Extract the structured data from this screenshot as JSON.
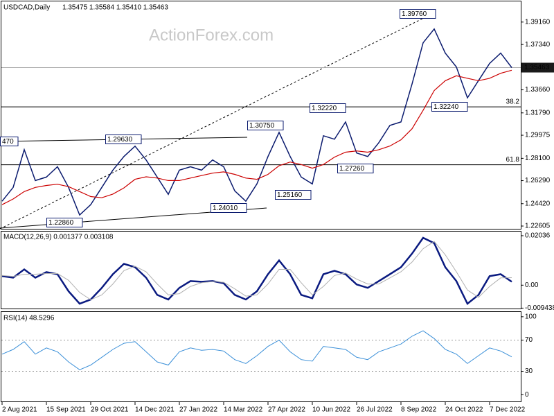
{
  "watermark": "ActionForex.com",
  "chart_data": [
    {
      "type": "line",
      "title": "USDCAD,Daily",
      "subtitle": "1.35475 1.35584 1.35410 1.35463",
      "categories": [
        "2 Aug 2021",
        null,
        null,
        null,
        "15 Sep 2021",
        null,
        null,
        null,
        "29 Oct 2021",
        null,
        null,
        null,
        "14 Dec 2021",
        null,
        null,
        null,
        "27 Jan 2022",
        null,
        null,
        null,
        "14 Mar 2022",
        null,
        null,
        null,
        "27 Apr 2022",
        null,
        null,
        null,
        "10 Jun 2022",
        null,
        null,
        null,
        "26 Jul 2022",
        null,
        null,
        null,
        "8 Sep 2022",
        null,
        null,
        null,
        "24 Oct 2022",
        null,
        null,
        null,
        "7 Dec 2022",
        null,
        null
      ],
      "series": [
        {
          "name": "USDCAD",
          "color": "#0a1a6e",
          "width": 1.5,
          "values": [
            1.2462,
            1.2574,
            1.2881,
            1.263,
            1.2658,
            1.2742,
            1.2574,
            1.235,
            1.2434,
            1.2574,
            1.2714,
            1.2825,
            1.2909,
            1.2797,
            1.2658,
            1.2518,
            1.2714,
            1.2742,
            1.2714,
            1.2797,
            1.2742,
            1.2546,
            1.2462,
            1.2602,
            1.2825,
            1.3021,
            1.2825,
            1.2658,
            1.2602,
            1.2993,
            1.2965,
            1.3105,
            1.2853,
            1.2825,
            1.2937,
            1.3077,
            1.3105,
            1.3413,
            1.3748,
            1.386,
            1.3664,
            1.3552,
            1.3301,
            1.3441,
            1.358,
            1.3664,
            1.35463
          ]
        },
        {
          "name": "MA",
          "color": "#cc0000",
          "width": 1.2,
          "values": [
            1.2434,
            1.248,
            1.254,
            1.2574,
            1.259,
            1.26,
            1.258,
            1.254,
            1.25,
            1.249,
            1.252,
            1.257,
            1.264,
            1.266,
            1.265,
            1.263,
            1.263,
            1.265,
            1.267,
            1.269,
            1.27,
            1.268,
            1.265,
            1.264,
            1.268,
            1.275,
            1.278,
            1.276,
            1.273,
            1.276,
            1.282,
            1.286,
            1.287,
            1.286,
            1.288,
            1.291,
            1.296,
            1.305,
            1.32,
            1.336,
            1.344,
            1.348,
            1.346,
            1.344,
            1.346,
            1.35,
            1.3525
          ]
        }
      ],
      "ylim": [
        1.22381,
        1.40838
      ],
      "yticks": [
        {
          "value": 1.3916,
          "label": "1.39160"
        },
        {
          "value": 1.3734,
          "label": "1.37340"
        },
        {
          "value": 1.3366,
          "label": "1.33660"
        },
        {
          "value": 1.3179,
          "label": "1.31790"
        },
        1.29975,
        {
          "value": 1.281,
          "label": "1.28100"
        },
        {
          "value": 1.2629,
          "label": "1.26290"
        },
        {
          "value": 1.2442,
          "label": "1.24420"
        },
        1.22605
      ],
      "last_price": {
        "value": 1.35463,
        "label": "1.35463"
      },
      "fib_levels": [
        {
          "value": 1.3228,
          "label": "38.2"
        },
        {
          "value": 1.2758,
          "label": "61.8"
        }
      ],
      "annotations": [
        "1.39760",
        "1.32240",
        "1.32220",
        "1.30750",
        "1.29630",
        "1.27260",
        "1.25160",
        "1.24010",
        "1.22860",
        "470"
      ]
    },
    {
      "type": "line",
      "title": "MACD(12,26,9) 0.001377 0.003108",
      "series": [
        {
          "name": "MACD",
          "color": "#0a1a80",
          "width": 2.5,
          "values": [
            0.0037,
            0.0031,
            0.0065,
            0.0031,
            0.0054,
            0.0045,
            -0.0025,
            -0.0076,
            -0.0059,
            -0.0011,
            0.0045,
            0.0088,
            0.0074,
            0.0031,
            -0.004,
            -0.0059,
            -0.0011,
            0.0017,
            0.0014,
            0.0017,
            0.0008,
            -0.004,
            -0.0059,
            -0.0025,
            0.0045,
            0.0102,
            0.0045,
            -0.004,
            -0.0054,
            0.0045,
            0.0059,
            0.0045,
            0.0003,
            -0.0011,
            0.0017,
            0.0045,
            0.0074,
            0.013,
            0.0195,
            0.0173,
            0.0074,
            0.0017,
            -0.0076,
            -0.004,
            0.0037,
            0.0045,
            0.0014
          ]
        },
        {
          "name": "Signal",
          "color": "#b0b0b0",
          "width": 1,
          "values": [
            0.004,
            0.0036,
            0.0045,
            0.0045,
            0.0048,
            0.0048,
            0.002,
            -0.003,
            -0.006,
            -0.004,
            0.0005,
            0.006,
            0.0078,
            0.0055,
            0.0005,
            -0.004,
            -0.0035,
            -0.0005,
            0.001,
            0.0015,
            0.0012,
            -0.0015,
            -0.0045,
            -0.004,
            0.0005,
            0.0065,
            0.0065,
            0.001,
            -0.004,
            -0.0005,
            0.004,
            0.005,
            0.0025,
            0.0005,
            0.0005,
            0.003,
            0.0055,
            0.0095,
            0.015,
            0.018,
            0.0125,
            0.0055,
            -0.002,
            -0.005,
            -0.0005,
            0.003,
            0.0031
          ]
        }
      ],
      "ylim": [
        -0.00961,
        0.02206
      ],
      "yticks": [
        0.02036,
        {
          "value": 0,
          "label": "0.00"
        },
        -0.009438
      ]
    },
    {
      "type": "line",
      "title": "RSI(14) 48.5296",
      "series": [
        {
          "name": "RSI",
          "color": "#3a8fd8",
          "width": 1,
          "values": [
            52,
            58,
            68,
            52,
            60,
            55,
            42,
            32,
            38,
            48,
            58,
            66,
            68,
            55,
            42,
            38,
            55,
            60,
            57,
            58,
            56,
            45,
            40,
            50,
            62,
            70,
            55,
            45,
            43,
            62,
            60,
            58,
            48,
            45,
            55,
            60,
            65,
            75,
            82,
            72,
            58,
            52,
            40,
            50,
            60,
            56,
            48.5296
          ]
        }
      ],
      "ylim": [
        -8.7,
        106.1
      ],
      "yticks": [
        100,
        70,
        30,
        0
      ],
      "levels": [
        70,
        30
      ]
    }
  ]
}
